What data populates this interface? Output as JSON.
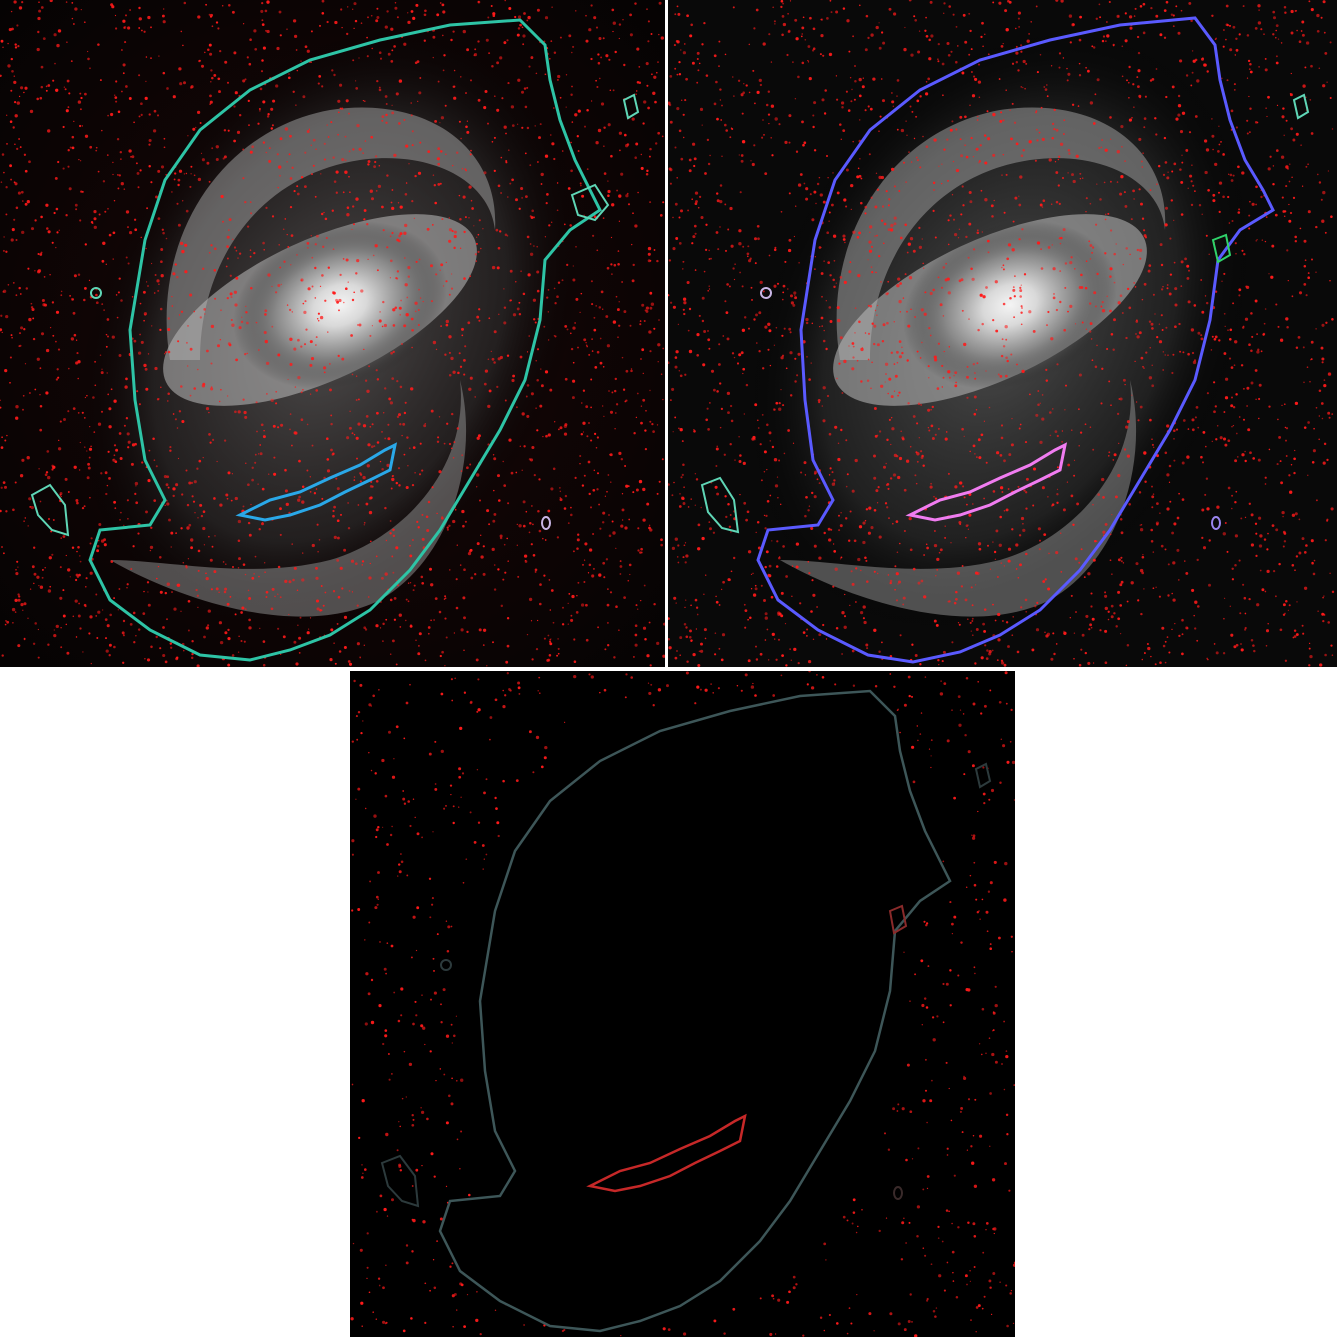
{
  "figure": {
    "background": "#ffffff",
    "colors": {
      "star_mask": "#ff1a1a",
      "galaxy_core": "#f2f2f2",
      "galaxy_arm": "#8c8c8c",
      "sky": "#050505"
    },
    "panels": [
      {
        "id": "left",
        "kind": "galaxy-with-contours",
        "outer_contour_color": "#2ec4a6",
        "inner_contour_color": "#2aa8e8",
        "small_blob_color": "#5fd6b6"
      },
      {
        "id": "right",
        "kind": "galaxy-with-contours",
        "outer_contour_color": "#5a5aff",
        "inner_contour_color": "#f07cf0",
        "small_blob_color": "#5fd6b6"
      },
      {
        "id": "bottom",
        "kind": "masked-residual",
        "outer_contour_color": "#3d5658",
        "inner_contour_color": "#c62828",
        "small_blob_color": "#2c3a3c"
      }
    ]
  }
}
